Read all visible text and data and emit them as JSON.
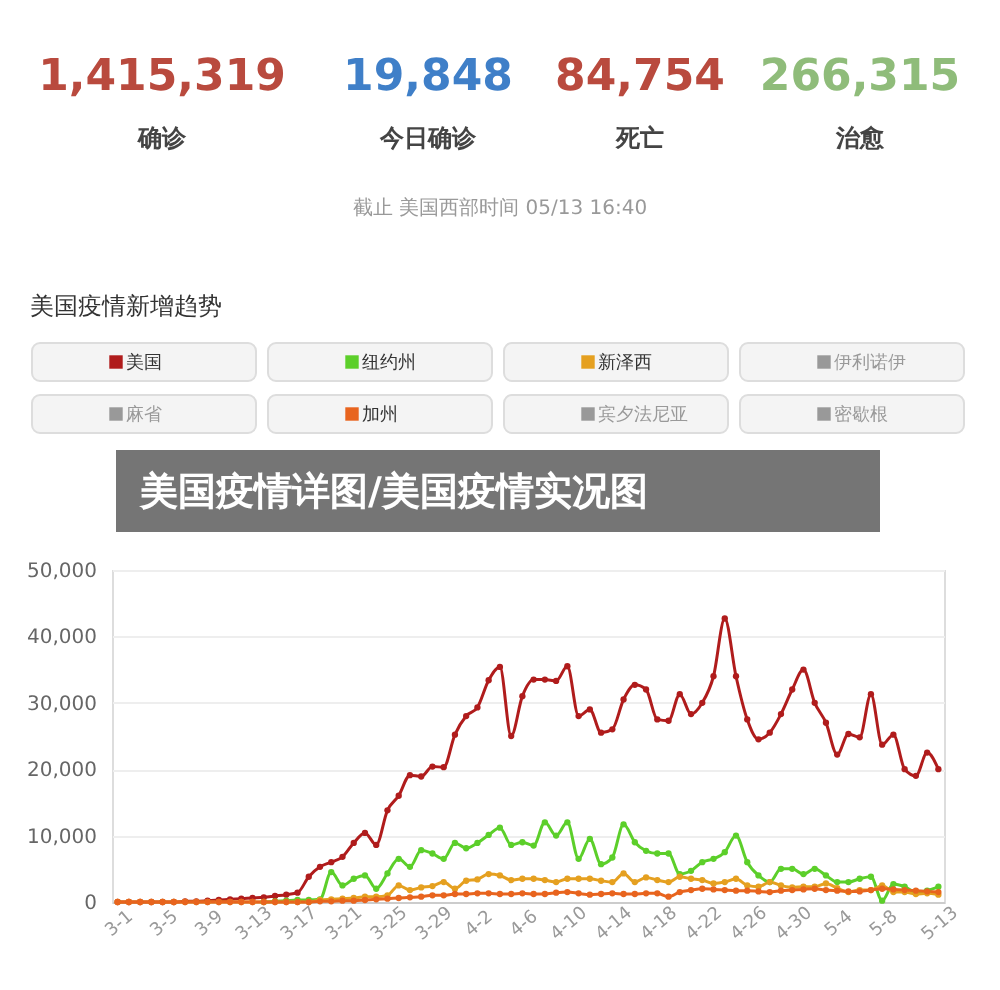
{
  "chart_data": {
    "type": "line",
    "title": "美国疫情新增趋势",
    "annotations": [
      "1,415,319",
      "确诊",
      "19,848",
      "今日确诊",
      "84,754",
      "死亡",
      "266,315",
      "治愈",
      "截止 美国西部时间 05/13 16:40",
      "美国疫情详图/美国疫情实况图"
    ],
    "categories": [
      "3-1",
      null,
      null,
      null,
      "3-5",
      null,
      null,
      null,
      "3-9",
      null,
      null,
      null,
      "3-13",
      null,
      null,
      null,
      "3-17",
      null,
      null,
      null,
      "3-21",
      null,
      null,
      null,
      "3-25",
      null,
      null,
      null,
      "3-29",
      null,
      null,
      null,
      "4-2",
      null,
      null,
      null,
      "4-6",
      null,
      null,
      null,
      "4-10",
      null,
      null,
      null,
      "4-14",
      null,
      null,
      null,
      "4-18",
      null,
      null,
      null,
      "4-22",
      null,
      null,
      null,
      "4-26",
      null,
      null,
      null,
      "4-30",
      null,
      null,
      null,
      "5-4",
      null,
      null,
      null,
      "5-8",
      null,
      null,
      null,
      null,
      "5-13"
    ],
    "series": [
      {
        "name": "美国",
        "color": "#b01c1c",
        "values": [
          0,
          0,
          0,
          0,
          0,
          0,
          100,
          100,
          200,
          300,
          400,
          500,
          600,
          700,
          900,
          1100,
          1400,
          3800,
          5300,
          6000,
          6800,
          8900,
          10400,
          8600,
          13800,
          16000,
          19100,
          18900,
          20400,
          20300,
          25200,
          28000,
          29300,
          33400,
          35400,
          25000,
          31000,
          33500,
          33500,
          33300,
          35500,
          28000,
          29000,
          25500,
          26000,
          30500,
          32700,
          32000,
          27500,
          27300,
          31300,
          28300,
          30000,
          34000,
          42700,
          34000,
          27500,
          24500,
          25500,
          28300,
          32000,
          35000,
          30000,
          27000,
          22200,
          25300,
          24800,
          31300,
          23700,
          25200,
          20000,
          19000,
          22500,
          20000
        ]
      },
      {
        "name": "纽约州",
        "color": "#5ccf2a",
        "values": [
          null,
          null,
          null,
          null,
          null,
          null,
          null,
          null,
          null,
          null,
          null,
          null,
          null,
          0,
          100,
          200,
          300,
          300,
          400,
          4500,
          2500,
          3500,
          4000,
          2000,
          4300,
          6500,
          5300,
          7800,
          7300,
          6500,
          8900,
          8100,
          8900,
          10100,
          11200,
          8600,
          9000,
          8500,
          12000,
          10000,
          12000,
          6500,
          9500,
          5700,
          6700,
          11700,
          9000,
          7700,
          7300,
          7300,
          4200,
          4700,
          6000,
          6500,
          7500,
          10000,
          6000,
          4000,
          3000,
          5000,
          5000,
          4200,
          5000,
          4000,
          3000,
          3000,
          3500,
          3800,
          200,
          2700,
          2300,
          1500,
          1700,
          2300
        ]
      },
      {
        "name": "新泽西",
        "color": "#e5a020",
        "values": [
          0,
          0,
          0,
          0,
          0,
          0,
          0,
          0,
          0,
          0,
          0,
          0,
          0,
          0,
          0,
          0,
          0,
          0,
          300,
          400,
          500,
          600,
          800,
          800,
          1000,
          2500,
          1800,
          2200,
          2400,
          3000,
          2000,
          3200,
          3400,
          4200,
          4000,
          3300,
          3500,
          3500,
          3300,
          3000,
          3500,
          3500,
          3500,
          3200,
          3000,
          4300,
          3000,
          3700,
          3300,
          3000,
          3800,
          3500,
          3300,
          2800,
          3000,
          3500,
          2500,
          2300,
          3000,
          2500,
          2200,
          2300,
          2300,
          2800,
          2100,
          1500,
          1800,
          1800,
          2500,
          1500,
          1500,
          1200,
          1300,
          1100
        ]
      },
      {
        "name": "伊利诺伊",
        "color": "#999999",
        "values": [
          null,
          null,
          null,
          null,
          null,
          null,
          null,
          null,
          null,
          null,
          null,
          null,
          null,
          null,
          null,
          null,
          null,
          null,
          null,
          null,
          null,
          null,
          null,
          null,
          null,
          null,
          null,
          null,
          null,
          null,
          null,
          null,
          null,
          null,
          null,
          null,
          null,
          null,
          null,
          null,
          null,
          null,
          null,
          null,
          null,
          null,
          null,
          null,
          null,
          null,
          null,
          null,
          null,
          null,
          null,
          null,
          null,
          null,
          null,
          null,
          null,
          null,
          null,
          null,
          null,
          null,
          null,
          null,
          null,
          null,
          null,
          null,
          null,
          null
        ]
      },
      {
        "name": "麻省",
        "color": "#999999",
        "values": [
          null,
          null,
          null,
          null,
          null,
          null,
          null,
          null,
          null,
          null,
          null,
          null,
          null,
          null,
          null,
          null,
          null,
          null,
          null,
          null,
          null,
          null,
          null,
          null,
          null,
          null,
          null,
          null,
          null,
          null,
          null,
          null,
          null,
          null,
          null,
          null,
          null,
          null,
          null,
          null,
          null,
          null,
          null,
          null,
          null,
          null,
          null,
          null,
          null,
          null,
          null,
          null,
          null,
          null,
          null,
          null,
          null,
          null,
          null,
          null,
          null,
          null,
          null,
          null,
          null,
          null,
          null,
          null,
          null,
          null,
          null,
          null,
          null,
          null
        ]
      },
      {
        "name": "加州",
        "color": "#e8641e",
        "values": [
          0,
          0,
          0,
          0,
          0,
          0,
          0,
          0,
          0,
          0,
          0,
          0,
          0,
          0,
          0,
          0,
          0,
          0,
          100,
          100,
          200,
          200,
          300,
          400,
          500,
          600,
          700,
          800,
          1000,
          1000,
          1200,
          1200,
          1300,
          1300,
          1200,
          1200,
          1300,
          1200,
          1200,
          1400,
          1500,
          1300,
          1100,
          1200,
          1300,
          1200,
          1200,
          1300,
          1300,
          800,
          1500,
          1800,
          2000,
          1900,
          1800,
          1700,
          1700,
          1600,
          1500,
          1700,
          1800,
          1900,
          2000,
          1800,
          1700,
          1600,
          1600,
          1800,
          2000,
          1900,
          1800,
          1700,
          1600,
          1500
        ]
      },
      {
        "name": "宾夕法尼亚",
        "color": "#999999",
        "values": [
          null,
          null,
          null,
          null,
          null,
          null,
          null,
          null,
          null,
          null,
          null,
          null,
          null,
          null,
          null,
          null,
          null,
          null,
          null,
          null,
          null,
          null,
          null,
          null,
          null,
          null,
          null,
          null,
          null,
          null,
          null,
          null,
          null,
          null,
          null,
          null,
          null,
          null,
          null,
          null,
          null,
          null,
          null,
          null,
          null,
          null,
          null,
          null,
          null,
          null,
          null,
          null,
          null,
          null,
          null,
          null,
          null,
          null,
          null,
          null,
          null,
          null,
          null,
          null,
          null,
          null,
          null,
          null,
          null,
          null,
          null,
          null,
          null,
          null
        ]
      },
      {
        "name": "密歇根",
        "color": "#999999",
        "values": [
          null,
          null,
          null,
          null,
          null,
          null,
          null,
          null,
          null,
          null,
          null,
          null,
          null,
          null,
          null,
          null,
          null,
          null,
          null,
          null,
          null,
          null,
          null,
          null,
          null,
          null,
          null,
          null,
          null,
          null,
          null,
          null,
          null,
          null,
          null,
          null,
          null,
          null,
          null,
          null,
          null,
          null,
          null,
          null,
          null,
          null,
          null,
          null,
          null,
          null,
          null,
          null,
          null,
          null,
          null,
          null,
          null,
          null,
          null,
          null,
          null,
          null,
          null,
          null,
          null,
          null,
          null,
          null,
          null,
          null,
          null,
          null,
          null,
          null
        ]
      }
    ],
    "ylim": [
      0,
      50000
    ],
    "yticks": [
      0,
      {
        "value": 10000,
        "label": "10,000"
      },
      {
        "value": 20000,
        "label": "20,000"
      },
      {
        "value": 30000,
        "label": "30,000"
      },
      {
        "value": 40000,
        "label": "40,000"
      },
      {
        "value": 50000,
        "label": "50,000"
      }
    ],
    "grid": "y",
    "legend": "top",
    "marker": "circle",
    "line_style": "solid"
  }
}
